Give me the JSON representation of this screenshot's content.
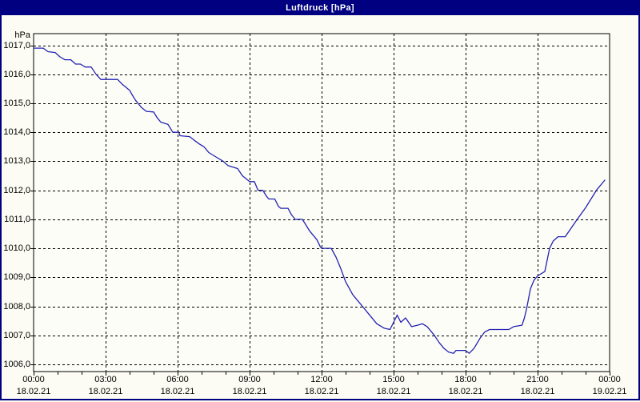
{
  "window": {
    "title": "Luftdruck [hPa]"
  },
  "colors": {
    "titlebar_bg": "#000080",
    "titlebar_fg": "#ffffff",
    "frame_border": "#000080",
    "background": "#fcfcf4",
    "plot_background": "#fdfdf7",
    "grid": "#000000",
    "axis": "#000000",
    "line": "#2222b2",
    "text": "#000000"
  },
  "chart_data": {
    "type": "line",
    "title": "Luftdruck [hPa]",
    "ylabel": "hPa",
    "xlabel": "",
    "ylim": [
      1006,
      1017
    ],
    "xlim_hours": [
      0,
      24
    ],
    "grid": true,
    "legend": false,
    "y_ticks": [
      {
        "value": 1017,
        "label": "1017,0"
      },
      {
        "value": 1016,
        "label": "1016,0"
      },
      {
        "value": 1015,
        "label": "1015,0"
      },
      {
        "value": 1014,
        "label": "1014,0"
      },
      {
        "value": 1013,
        "label": "1013,0"
      },
      {
        "value": 1012,
        "label": "1012,0"
      },
      {
        "value": 1011,
        "label": "1011,0"
      },
      {
        "value": 1010,
        "label": "1010,0"
      },
      {
        "value": 1009,
        "label": "1009,0"
      },
      {
        "value": 1008,
        "label": "1008,0"
      },
      {
        "value": 1007,
        "label": "1007,0"
      },
      {
        "value": 1006,
        "label": "1006,0"
      }
    ],
    "x_ticks": [
      {
        "hour": 0,
        "time": "00:00",
        "date": "18.02.21"
      },
      {
        "hour": 3,
        "time": "03:00",
        "date": "18.02.21"
      },
      {
        "hour": 6,
        "time": "06:00",
        "date": "18.02.21"
      },
      {
        "hour": 9,
        "time": "09:00",
        "date": "18.02.21"
      },
      {
        "hour": 12,
        "time": "12:00",
        "date": "18.02.21"
      },
      {
        "hour": 15,
        "time": "15:00",
        "date": "18.02.21"
      },
      {
        "hour": 18,
        "time": "18:00",
        "date": "18.02.21"
      },
      {
        "hour": 21,
        "time": "21:00",
        "date": "18.02.21"
      },
      {
        "hour": 24,
        "time": "00:00",
        "date": "19.02.21"
      }
    ],
    "series": [
      {
        "name": "Luftdruck",
        "unit": "hPa",
        "color": "#2222b2",
        "points": [
          [
            0.0,
            1016.9
          ],
          [
            0.4,
            1016.9
          ],
          [
            0.6,
            1016.78
          ],
          [
            0.9,
            1016.75
          ],
          [
            1.1,
            1016.6
          ],
          [
            1.3,
            1016.5
          ],
          [
            1.55,
            1016.5
          ],
          [
            1.75,
            1016.35
          ],
          [
            1.95,
            1016.35
          ],
          [
            2.15,
            1016.25
          ],
          [
            2.4,
            1016.25
          ],
          [
            2.6,
            1016.0
          ],
          [
            2.8,
            1015.82
          ],
          [
            3.5,
            1015.82
          ],
          [
            3.7,
            1015.65
          ],
          [
            4.0,
            1015.45
          ],
          [
            4.1,
            1015.3
          ],
          [
            4.25,
            1015.1
          ],
          [
            4.35,
            1015.0
          ],
          [
            4.5,
            1014.85
          ],
          [
            4.7,
            1014.72
          ],
          [
            5.0,
            1014.7
          ],
          [
            5.15,
            1014.5
          ],
          [
            5.3,
            1014.35
          ],
          [
            5.6,
            1014.27
          ],
          [
            5.8,
            1014.0
          ],
          [
            6.05,
            1014.0
          ],
          [
            6.1,
            1013.88
          ],
          [
            6.5,
            1013.85
          ],
          [
            6.7,
            1013.72
          ],
          [
            6.9,
            1013.6
          ],
          [
            7.1,
            1013.5
          ],
          [
            7.3,
            1013.3
          ],
          [
            7.6,
            1013.15
          ],
          [
            7.9,
            1013.0
          ],
          [
            8.1,
            1012.85
          ],
          [
            8.5,
            1012.75
          ],
          [
            8.7,
            1012.5
          ],
          [
            9.0,
            1012.3
          ],
          [
            9.2,
            1012.3
          ],
          [
            9.35,
            1012.0
          ],
          [
            9.55,
            1012.0
          ],
          [
            9.7,
            1011.8
          ],
          [
            9.8,
            1011.7
          ],
          [
            10.05,
            1011.7
          ],
          [
            10.2,
            1011.45
          ],
          [
            10.3,
            1011.38
          ],
          [
            10.6,
            1011.38
          ],
          [
            10.75,
            1011.15
          ],
          [
            10.9,
            1011.0
          ],
          [
            11.2,
            1011.0
          ],
          [
            11.35,
            1010.8
          ],
          [
            11.5,
            1010.6
          ],
          [
            11.7,
            1010.4
          ],
          [
            11.8,
            1010.3
          ],
          [
            11.95,
            1010.05
          ],
          [
            12.0,
            1010.0
          ],
          [
            12.4,
            1010.0
          ],
          [
            12.6,
            1009.7
          ],
          [
            12.8,
            1009.3
          ],
          [
            13.0,
            1008.85
          ],
          [
            13.3,
            1008.4
          ],
          [
            13.7,
            1008.0
          ],
          [
            14.0,
            1007.7
          ],
          [
            14.3,
            1007.4
          ],
          [
            14.6,
            1007.25
          ],
          [
            14.85,
            1007.2
          ],
          [
            15.0,
            1007.45
          ],
          [
            15.15,
            1007.7
          ],
          [
            15.3,
            1007.45
          ],
          [
            15.5,
            1007.6
          ],
          [
            15.75,
            1007.3
          ],
          [
            16.0,
            1007.35
          ],
          [
            16.2,
            1007.4
          ],
          [
            16.4,
            1007.3
          ],
          [
            16.7,
            1007.0
          ],
          [
            16.9,
            1006.75
          ],
          [
            17.1,
            1006.55
          ],
          [
            17.3,
            1006.42
          ],
          [
            17.5,
            1006.38
          ],
          [
            17.6,
            1006.48
          ],
          [
            18.0,
            1006.48
          ],
          [
            18.15,
            1006.38
          ],
          [
            18.35,
            1006.55
          ],
          [
            18.6,
            1006.9
          ],
          [
            18.8,
            1007.12
          ],
          [
            19.0,
            1007.2
          ],
          [
            19.8,
            1007.2
          ],
          [
            20.0,
            1007.3
          ],
          [
            20.35,
            1007.35
          ],
          [
            20.45,
            1007.6
          ],
          [
            20.55,
            1007.95
          ],
          [
            20.7,
            1008.6
          ],
          [
            20.85,
            1008.9
          ],
          [
            21.0,
            1009.05
          ],
          [
            21.3,
            1009.2
          ],
          [
            21.5,
            1010.0
          ],
          [
            21.65,
            1010.25
          ],
          [
            21.85,
            1010.4
          ],
          [
            22.15,
            1010.4
          ],
          [
            22.65,
            1011.0
          ],
          [
            23.0,
            1011.4
          ],
          [
            23.45,
            1012.0
          ],
          [
            23.8,
            1012.35
          ]
        ]
      }
    ]
  }
}
